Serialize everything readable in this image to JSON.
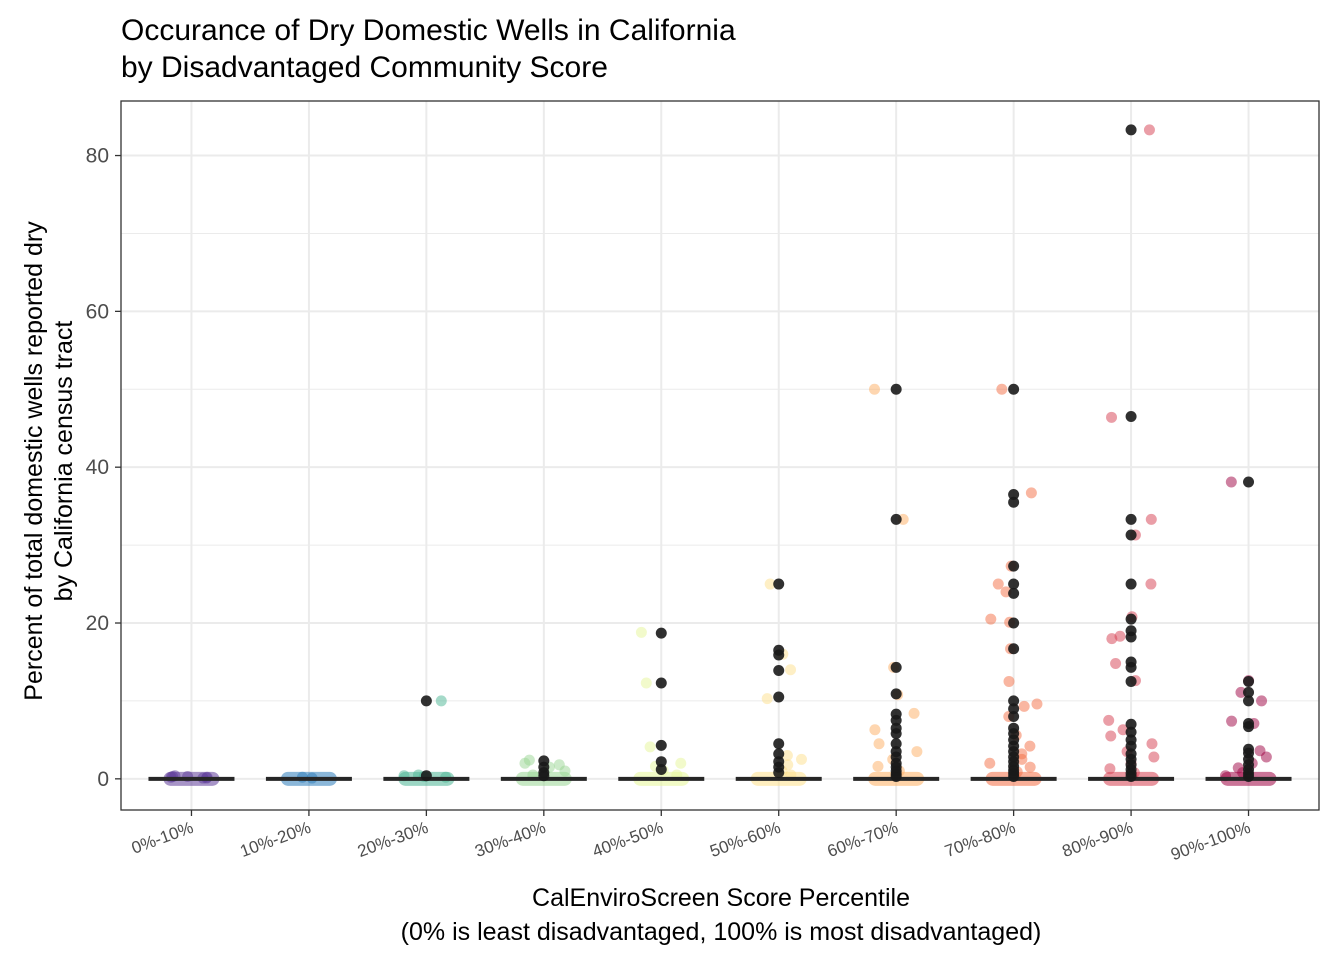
{
  "chart_data": {
    "type": "scatter",
    "title": "Occurance of Dry Domestic Wells in California",
    "subtitle": "by Disadvantaged Community Score",
    "xlabel": "CalEnviroScreen Score Percentile",
    "xlabel_sub": "(0% is least disadvantaged, 100% is most disadvantaged)",
    "ylabel": "Percent of total domestic wells reported dry",
    "ylabel_sub": "by California census tract",
    "ylim": [
      -4,
      87
    ],
    "yticks": [
      0,
      20,
      40,
      60,
      80
    ],
    "grid": true,
    "legend": "none",
    "categories": [
      "0%-10%",
      "10%-20%",
      "20%-30%",
      "30%-40%",
      "40%-50%",
      "50%-60%",
      "60%-70%",
      "70%-80%",
      "80%-90%",
      "90%-100%"
    ],
    "colors": [
      "#5e3c99",
      "#2b7bba",
      "#4bb593",
      "#99d594",
      "#e6f598",
      "#fee08b",
      "#fdae61",
      "#f46d43",
      "#d53e4f",
      "#9e0142"
    ],
    "outlier_color": "#1a1a1a",
    "median": [
      0,
      0,
      0,
      0,
      0,
      0,
      0,
      0,
      0,
      0
    ],
    "outliers": [
      [],
      [],
      [
        0.4,
        10
      ],
      [
        0.4,
        0.8,
        1.5,
        2.3
      ],
      [
        1.2,
        2.2,
        4.3,
        12.3,
        18.7
      ],
      [
        0.8,
        1.5,
        2.2,
        3.2,
        4.5,
        10.5,
        13.9,
        15.9,
        16.5,
        25
      ],
      [
        0.3,
        0.6,
        1,
        1.5,
        2,
        2.8,
        3.5,
        4.5,
        5.8,
        6.5,
        7.5,
        8.3,
        10.9,
        14.3,
        33.3,
        50
      ],
      [
        0.3,
        0.7,
        1.1,
        1.6,
        2.2,
        2.8,
        3.5,
        4.2,
        5,
        5.8,
        6.5,
        8,
        9,
        10,
        16.7,
        20,
        23.8,
        25,
        27.3,
        35.5,
        36.5,
        50
      ],
      [
        0.3,
        0.7,
        1.2,
        1.8,
        2.5,
        3.2,
        4.2,
        5,
        6,
        7,
        12.5,
        14.3,
        15,
        18.2,
        19,
        20.5,
        25,
        31.3,
        33.3,
        46.5,
        83.3
      ],
      [
        0.3,
        0.7,
        1.2,
        1.8,
        2.5,
        3.3,
        3.8,
        6.7,
        7.1,
        10,
        11.1,
        12.5,
        38.1
      ]
    ],
    "points": [
      [
        0.1,
        0.2,
        0.3,
        0.2,
        0.4,
        0.1,
        0.3
      ],
      [
        0.1,
        0.2
      ],
      [
        0.3,
        0.5,
        0.2,
        0.4,
        10
      ],
      [
        0.5,
        1,
        1.5,
        2,
        2.4,
        1.8
      ],
      [
        0.5,
        1.1,
        2,
        4.1,
        12.3,
        18.8,
        1.6
      ],
      [
        0.5,
        1,
        1.8,
        2.5,
        3,
        10.3,
        14,
        16,
        25
      ],
      [
        0.4,
        1,
        1.6,
        2.5,
        3.5,
        4.5,
        6.3,
        8.4,
        10.8,
        14.3,
        33.3,
        50
      ],
      [
        0.4,
        0.9,
        1.5,
        2,
        2.5,
        3.2,
        4.2,
        5.6,
        8,
        9.3,
        9.6,
        12.5,
        16.7,
        20.1,
        20.5,
        24,
        25,
        27.3,
        36.7,
        50
      ],
      [
        0.4,
        0.8,
        1.3,
        2,
        2.8,
        3.5,
        4.5,
        5.5,
        6.3,
        7.5,
        12.6,
        14.8,
        18,
        18.3,
        20.8,
        25,
        31.3,
        33.3,
        46.4,
        83.3
      ],
      [
        0.4,
        0.8,
        1.4,
        2,
        2.8,
        3.6,
        7.4,
        7.1,
        10,
        11.1,
        12.6,
        38.1
      ]
    ]
  }
}
